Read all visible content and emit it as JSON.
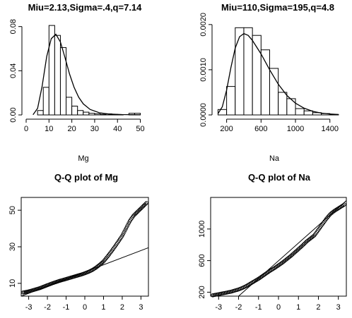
{
  "chart_data": [
    {
      "type": "bar",
      "title": "Miu=2.13,Sigma=.4,q=7.14",
      "xlabel": "Mg",
      "ylabel": "",
      "xlim": [
        0,
        52
      ],
      "ylim": [
        0,
        0.09
      ],
      "xticks": [
        "0",
        "10",
        "20",
        "30",
        "40",
        "50"
      ],
      "yticks": [
        "0.00",
        "0.04",
        "0.08"
      ],
      "bin_edges": [
        5,
        7.5,
        10,
        12.5,
        15,
        17.5,
        20,
        22.5,
        25,
        27.5,
        30,
        32.5,
        35,
        37.5,
        40,
        42.5,
        45,
        47.5,
        50
      ],
      "values": [
        0.004,
        0.025,
        0.081,
        0.072,
        0.061,
        0.016,
        0.008,
        0.004,
        0.0025,
        0.0015,
        0.001,
        0.0005,
        0.001,
        0.0005,
        0.0003,
        0,
        0.0015,
        0.0015
      ],
      "density_curve": {
        "x": [
          3,
          5,
          7,
          9,
          11,
          13,
          15,
          17,
          19,
          21,
          23,
          25,
          28,
          32,
          36,
          42,
          50
        ],
        "y": [
          0.0002,
          0.006,
          0.026,
          0.053,
          0.069,
          0.073,
          0.066,
          0.052,
          0.037,
          0.025,
          0.016,
          0.01,
          0.005,
          0.002,
          0.0008,
          0.0003,
          0.0001
        ]
      }
    },
    {
      "type": "bar",
      "title": "Miu=110,Sigma=195,q=4.8",
      "xlabel": "Na",
      "ylabel": "",
      "xlim": [
        80,
        1550
      ],
      "ylim": [
        0,
        0.0022
      ],
      "xticks": [
        "200",
        "600",
        "1000",
        "1400"
      ],
      "yticks": [
        "0.0000",
        "0.0010",
        "0.0020"
      ],
      "bin_edges": [
        100,
        200,
        300,
        400,
        500,
        600,
        700,
        800,
        900,
        1000,
        1100,
        1200,
        1300,
        1400,
        1500
      ],
      "values": [
        0.00012,
        0.00063,
        0.00193,
        0.00193,
        0.00176,
        0.00144,
        0.00103,
        0.0005,
        0.00036,
        0.00014,
        9e-05,
        5e-05,
        3e-05,
        1e-05
      ],
      "density_curve": {
        "x": [
          100,
          150,
          200,
          250,
          300,
          350,
          400,
          450,
          500,
          600,
          700,
          800,
          900,
          1000,
          1100,
          1200,
          1300,
          1400,
          1500
        ],
        "y": [
          3e-05,
          0.00018,
          0.00055,
          0.00105,
          0.00148,
          0.00173,
          0.0018,
          0.00176,
          0.00165,
          0.00135,
          0.001,
          0.00068,
          0.00043,
          0.00026,
          0.00015,
          8e-05,
          4e-05,
          2e-05,
          1e-05
        ]
      }
    },
    {
      "type": "scatter",
      "title": "Q-Q plot of Mg",
      "xlabel": "",
      "ylabel": "",
      "xlim": [
        -3.4,
        3.4
      ],
      "ylim": [
        3,
        57
      ],
      "xticks": [
        "-3",
        "-2",
        "-1",
        "0",
        "1",
        "2",
        "3"
      ],
      "yticks": [
        "10",
        "30",
        "50"
      ],
      "points": {
        "x": [
          -3.3,
          -3.0,
          -2.8,
          -2.6,
          -2.4,
          -2.2,
          -2.0,
          -1.8,
          -1.6,
          -1.4,
          -1.2,
          -1.0,
          -0.8,
          -0.6,
          -0.4,
          -0.2,
          0.0,
          0.2,
          0.4,
          0.6,
          0.8,
          1.0,
          1.2,
          1.4,
          1.6,
          1.8,
          2.0,
          2.2,
          2.4,
          2.6,
          2.8,
          3.3
        ],
        "y": [
          5,
          5.6,
          6.2,
          6.8,
          7.4,
          8.2,
          9.0,
          9.8,
          10.5,
          11.2,
          11.8,
          12.4,
          13.0,
          13.6,
          14.2,
          14.8,
          15.5,
          16.3,
          17.3,
          18.6,
          20.2,
          22.0,
          24.5,
          27.2,
          30.0,
          33.0,
          36.0,
          40.0,
          44.0,
          47.0,
          49.0,
          54.0
        ]
      },
      "reference_line": {
        "x": [
          -3.4,
          3.4
        ],
        "y": [
          2.0,
          29.5
        ]
      }
    },
    {
      "type": "scatter",
      "title": "Q-Q plot of Na",
      "xlabel": "",
      "ylabel": "",
      "xlim": [
        -3.4,
        3.4
      ],
      "ylim": [
        150,
        1400
      ],
      "xticks": [
        "-3",
        "-2",
        "-1",
        "0",
        "1",
        "2",
        "3"
      ],
      "yticks": [
        "200",
        "600",
        "1000"
      ],
      "points": {
        "x": [
          -3.3,
          -3.0,
          -2.8,
          -2.6,
          -2.4,
          -2.2,
          -2.0,
          -1.8,
          -1.6,
          -1.4,
          -1.2,
          -1.0,
          -0.8,
          -0.6,
          -0.4,
          -0.2,
          0.0,
          0.2,
          0.4,
          0.6,
          0.8,
          1.0,
          1.2,
          1.4,
          1.6,
          1.8,
          2.0,
          2.2,
          2.4,
          2.6,
          2.8,
          3.3
        ],
        "y": [
          160,
          175,
          185,
          195,
          205,
          220,
          235,
          255,
          280,
          310,
          340,
          370,
          405,
          440,
          475,
          505,
          540,
          575,
          615,
          655,
          700,
          745,
          790,
          840,
          880,
          920,
          990,
          1060,
          1130,
          1190,
          1230,
          1310
        ]
      },
      "reference_line": {
        "x": [
          -2.0,
          3.4
        ],
        "y": [
          150,
          1360
        ]
      }
    }
  ]
}
